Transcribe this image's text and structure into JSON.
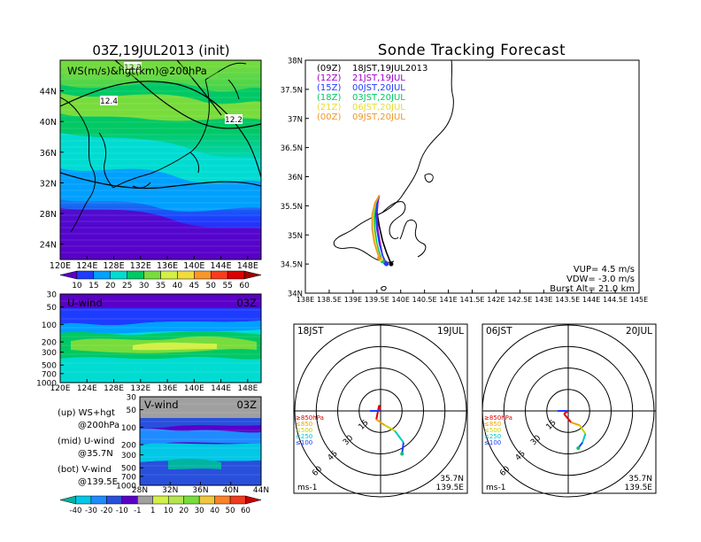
{
  "wind_map": {
    "title": "03Z,19JUL2013 (init)",
    "label": "WS(m/s)&hgt(km)@200hPa",
    "lat_ticks": [
      "44N",
      "40N",
      "36N",
      "32N",
      "28N",
      "24N"
    ],
    "lon_ticks": [
      "120E",
      "124E",
      "128E",
      "132E",
      "136E",
      "140E",
      "144E",
      "148E"
    ],
    "contour_labels": [
      "12.4",
      "12.2",
      "12.2"
    ],
    "colorbar_ticks": [
      "10",
      "15",
      "20",
      "25",
      "30",
      "35",
      "40",
      "45",
      "50",
      "55",
      "60"
    ],
    "colorbar_colors": [
      "#5a00c8",
      "#1e3cff",
      "#00a0ff",
      "#00dcd2",
      "#00c864",
      "#78dc3c",
      "#d2f046",
      "#f0dc3c",
      "#fa9628",
      "#fa3c1e",
      "#dc0000",
      "#a00000"
    ]
  },
  "u_panel": {
    "label": "U-wind",
    "time": "03Z",
    "y_ticks": [
      "30",
      "50",
      "100",
      "200",
      "300",
      "500",
      "700",
      "1000"
    ],
    "x_ticks": [
      "120E",
      "124E",
      "128E",
      "132E",
      "136E",
      "140E",
      "144E",
      "148E"
    ]
  },
  "v_panel": {
    "label": "V-wind",
    "time": "03Z",
    "y_ticks": [
      "30",
      "50",
      "100",
      "200",
      "300",
      "500",
      "700",
      "1000"
    ],
    "x_ticks": [
      "28N",
      "32N",
      "36N",
      "40N",
      "44N"
    ]
  },
  "side_notes": {
    "up": "(up) WS+hgt",
    "up2": "@200hPa",
    "mid": "(mid) U-wind",
    "mid2": "@35.7N",
    "bot": "(bot) V-wind",
    "bot2": "@139.5E"
  },
  "bottom_colorbar": {
    "ticks": [
      "-40",
      "-30",
      "-20",
      "-10",
      "-1",
      "1",
      "10",
      "20",
      "30",
      "40",
      "50",
      "60"
    ],
    "colors": [
      "#00b4a0",
      "#00c8e6",
      "#1e8cff",
      "#2850dc",
      "#5a00c8",
      "#a0a0a0",
      "#d2f046",
      "#b4e650",
      "#78dc3c",
      "#f0c83c",
      "#fa8228",
      "#f03c1e",
      "#c80000"
    ]
  },
  "tracking": {
    "title": "Sonde Tracking Forecast",
    "lat_ticks": [
      "38N",
      "37.5N",
      "37N",
      "36.5N",
      "36N",
      "35.5N",
      "35N",
      "34.5N",
      "34N"
    ],
    "lon_ticks": [
      "138E",
      "138.5E",
      "139E",
      "139.5E",
      "140E",
      "140.5E",
      "141E",
      "141.5E",
      "142E",
      "142.5E",
      "143E",
      "143.5E",
      "144E",
      "144.5E",
      "145E"
    ],
    "legend": [
      {
        "z": "(09Z)",
        "jst": "18JST,19JUL2013",
        "color": "#000000"
      },
      {
        "z": "(12Z)",
        "jst": "21JST,19JUL",
        "color": "#a000c8"
      },
      {
        "z": "(15Z)",
        "jst": "00JST,20JUL",
        "color": "#1e3cff"
      },
      {
        "z": "(18Z)",
        "jst": "03JST,20JUL",
        "color": "#00c864"
      },
      {
        "z": "(21Z)",
        "jst": "06JST,20JUL",
        "color": "#e6dc32"
      },
      {
        "z": "(00Z)",
        "jst": "09JST,20JUL",
        "color": "#f09628"
      }
    ],
    "info": [
      "VUP= 4.5 m/s",
      "VDW= -3.0 m/s",
      "Burst Alt= 21.0 km"
    ]
  },
  "hodographs": [
    {
      "jst": "18JST",
      "date": "19JUL",
      "ring_labels": [
        "15",
        "30",
        "45",
        "60"
      ],
      "levels": [
        "≥850hPa",
        "≤850",
        "≤500",
        "≤250",
        "≤100"
      ],
      "unit": "ms-1",
      "loc1": "35.7N",
      "loc2": "139.5E"
    },
    {
      "jst": "06JST",
      "date": "20JUL",
      "ring_labels": [
        "15",
        "30",
        "45",
        "60"
      ],
      "levels": [
        "≥850hPa",
        "≤850",
        "≤500",
        "≤250",
        "≤100"
      ],
      "unit": "ms-1",
      "loc1": "35.7N",
      "loc2": "139.5E"
    }
  ],
  "level_colors": [
    "#dc0000",
    "#f0a000",
    "#c8d200",
    "#00c8c8",
    "#1e3cff"
  ],
  "chart_data": [
    {
      "type": "heatmap",
      "title": "03Z,19JUL2013 (init)",
      "subtitle": "WS(m/s)&hgt(km)@200hPa",
      "x_range_deg_E": [
        120,
        150
      ],
      "y_range_deg_N": [
        22,
        48
      ],
      "contour_labels_km": [
        12.4,
        12.2,
        12.2
      ],
      "colorbar": [
        10,
        15,
        20,
        25,
        30,
        35,
        40,
        45,
        50,
        55,
        60
      ]
    },
    {
      "type": "heatmap",
      "title": "U-wind 03Z",
      "x_range_deg_E": [
        120,
        150
      ],
      "y_axis_hPa": [
        30,
        50,
        100,
        200,
        300,
        500,
        700,
        1000
      ]
    },
    {
      "type": "heatmap",
      "title": "V-wind 03Z",
      "x_range_deg_N": [
        28,
        44
      ],
      "y_axis_hPa": [
        30,
        50,
        100,
        200,
        300,
        500,
        700,
        1000
      ],
      "colorbar": [
        -40,
        -30,
        -20,
        -10,
        -1,
        1,
        10,
        20,
        30,
        40,
        50,
        60
      ]
    },
    {
      "type": "line",
      "title": "Sonde Tracking Forecast",
      "xlim": [
        138,
        145
      ],
      "ylim": [
        34,
        38
      ],
      "series": [
        {
          "name": "18JST,19JUL2013",
          "color": "#000000",
          "x": [
            139.55,
            139.52,
            139.5,
            139.55,
            139.62,
            139.7,
            139.8
          ],
          "y": [
            35.68,
            35.58,
            35.4,
            35.15,
            34.9,
            34.7,
            34.5
          ]
        },
        {
          "name": "21JST,19JUL",
          "color": "#a000c8",
          "x": [
            139.55,
            139.52,
            139.5,
            139.52,
            139.57,
            139.62,
            139.68
          ],
          "y": [
            35.68,
            35.55,
            35.35,
            35.1,
            34.85,
            34.65,
            34.52
          ]
        },
        {
          "name": "00JST,20JUL",
          "color": "#1e3cff",
          "x": [
            139.55,
            139.5,
            139.48,
            139.5,
            139.55,
            139.62,
            139.7
          ],
          "y": [
            35.68,
            35.55,
            35.35,
            35.1,
            34.85,
            34.65,
            34.5
          ]
        },
        {
          "name": "03JST,20JUL",
          "color": "#00c864",
          "x": [
            139.55,
            139.48,
            139.45,
            139.46,
            139.5,
            139.56,
            139.62
          ],
          "y": [
            35.68,
            35.55,
            35.35,
            35.1,
            34.85,
            34.68,
            34.55
          ]
        },
        {
          "name": "06JST,20JUL",
          "color": "#e6dc32",
          "x": [
            139.55,
            139.47,
            139.42,
            139.43,
            139.47,
            139.52,
            139.58
          ],
          "y": [
            35.68,
            35.55,
            35.35,
            35.1,
            34.88,
            34.7,
            34.58
          ]
        },
        {
          "name": "09JST,20JUL",
          "color": "#f09628",
          "x": [
            139.55,
            139.46,
            139.4,
            139.4,
            139.44,
            139.5,
            139.55
          ],
          "y": [
            35.68,
            35.55,
            35.35,
            35.1,
            34.88,
            34.72,
            34.6
          ]
        }
      ]
    },
    {
      "type": "line",
      "title": "18JST 19JUL hodograph",
      "unit": "ms-1",
      "ring_speeds": [
        15,
        30,
        45,
        60
      ],
      "u": [
        0,
        -1,
        -3,
        3,
        10,
        16,
        15
      ],
      "v": [
        0,
        4,
        -6,
        -10,
        -14,
        -22,
        -30
      ]
    },
    {
      "type": "line",
      "title": "06JST 20JUL hodograph",
      "unit": "ms-1",
      "ring_speeds": [
        15,
        30,
        45,
        60
      ],
      "u": [
        0,
        -3,
        2,
        8,
        12,
        10,
        7
      ],
      "v": [
        0,
        -2,
        -8,
        -10,
        -16,
        -22,
        -26
      ]
    }
  ]
}
